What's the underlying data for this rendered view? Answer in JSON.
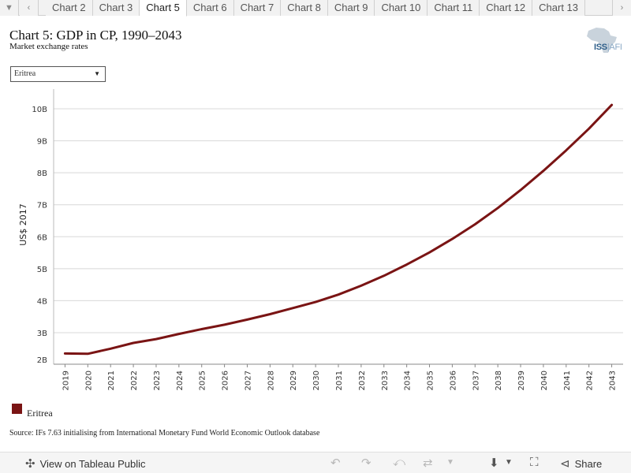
{
  "tabs": {
    "first_icon": "caret-down-icon",
    "prev_icon": "chevron-left-icon",
    "next_icon": "chevron-right-icon",
    "items": [
      {
        "label": "Chart 2",
        "active": false
      },
      {
        "label": "Chart 3",
        "active": false
      },
      {
        "label": "Chart 5",
        "active": true
      },
      {
        "label": "Chart 6",
        "active": false
      },
      {
        "label": "Chart 7",
        "active": false
      },
      {
        "label": "Chart 8",
        "active": false
      },
      {
        "label": "Chart 9",
        "active": false
      },
      {
        "label": "Chart 10",
        "active": false
      },
      {
        "label": "Chart 11",
        "active": false
      },
      {
        "label": "Chart 12",
        "active": false
      },
      {
        "label": "Chart 13",
        "active": false
      }
    ]
  },
  "header": {
    "title": "Chart 5: GDP in CP, 1990–2043",
    "subtitle": "Market exchange rates",
    "logo_text": "ISS",
    "logo_suffix": "AFI"
  },
  "filter": {
    "selected": "Eritrea"
  },
  "chart_data": {
    "type": "line",
    "title": "Chart 5: GDP in CP, 1990–2043",
    "subtitle": "Market exchange rates",
    "xlabel": "",
    "ylabel": "US$ 2017",
    "x": [
      2019,
      2020,
      2021,
      2022,
      2023,
      2024,
      2025,
      2026,
      2027,
      2028,
      2029,
      2030,
      2031,
      2032,
      2033,
      2034,
      2035,
      2036,
      2037,
      2038,
      2039,
      2040,
      2041,
      2042,
      2043
    ],
    "y_tick_labels": [
      "2B",
      "3B",
      "4B",
      "5B",
      "6B",
      "7B",
      "8B",
      "9B",
      "10B"
    ],
    "y_ticks": [
      2,
      3,
      4,
      5,
      6,
      7,
      8,
      9,
      10
    ],
    "ylim": [
      2,
      10.4
    ],
    "unit": "billions",
    "grid": true,
    "legend": "bottom-left",
    "series": [
      {
        "name": "Eritrea",
        "color": "#7a1414",
        "values": [
          2.35,
          2.34,
          2.5,
          2.68,
          2.8,
          2.96,
          3.11,
          3.25,
          3.41,
          3.58,
          3.77,
          3.96,
          4.19,
          4.47,
          4.78,
          5.13,
          5.51,
          5.93,
          6.39,
          6.9,
          7.46,
          8.06,
          8.7,
          9.38,
          10.12
        ]
      }
    ]
  },
  "legend": {
    "label": "Eritrea"
  },
  "source": "Source: IFs 7.63 initialising from International Monetary Fund World Economic Outlook database",
  "toolbar": {
    "view_label": "View on Tableau Public",
    "share_label": "Share",
    "icons": [
      "tableau-icon",
      "undo-icon",
      "redo-icon",
      "revert-icon",
      "refresh-icon",
      "download-icon",
      "fullscreen-icon",
      "share-icon"
    ]
  }
}
